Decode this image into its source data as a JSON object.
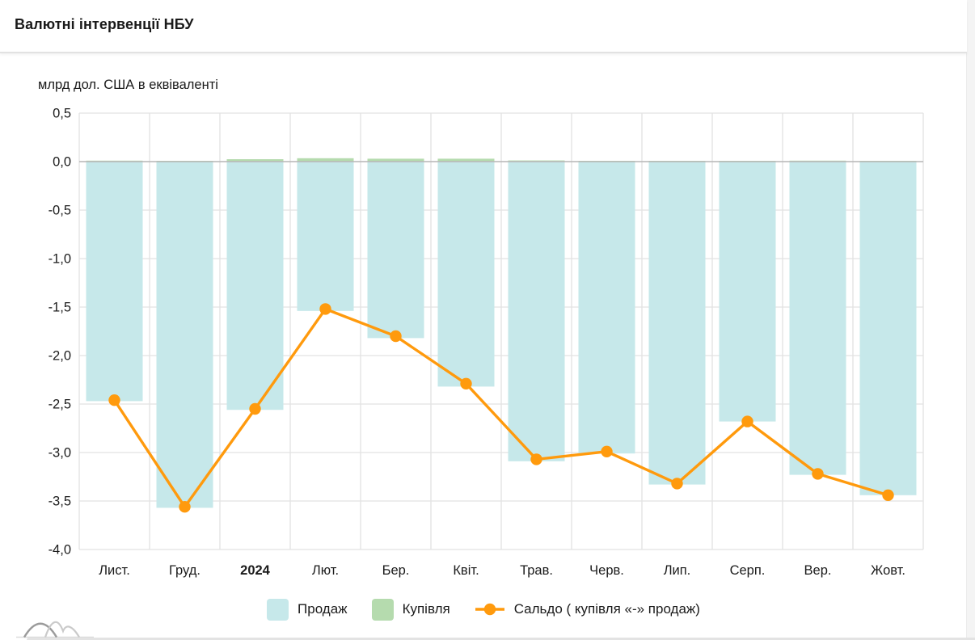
{
  "header": {
    "title": "Валютні інтервенції НБУ"
  },
  "chart": {
    "unit_label": "млрд дол. США в еквіваленті"
  },
  "legend": {
    "sell_label": "Продаж",
    "buy_label": "Купівля",
    "balance_label": "Сальдо ( купівля «-» продаж)"
  },
  "colors": {
    "sell": "#c6e8ea",
    "buy": "#b5dbae",
    "balance": "#ff9a0d",
    "gridline": "#e2e2e2",
    "zero_line": "#b8b8b8",
    "text": "#1b1b1b"
  },
  "chart_data": {
    "type": "bar+line",
    "title": "Валютні інтервенції НБУ",
    "ylabel": "млрд дол. США в еквіваленті",
    "categories": [
      "Лист.",
      "Груд.",
      "2024",
      "Лют.",
      "Бер.",
      "Квіт.",
      "Трав.",
      "Черв.",
      "Лип.",
      "Серп.",
      "Вер.",
      "Жовт."
    ],
    "bold_category": "2024",
    "series": [
      {
        "name": "Продаж",
        "type": "bar",
        "values": [
          -2.47,
          -3.57,
          -2.56,
          -1.54,
          -1.82,
          -2.32,
          -3.09,
          -3.01,
          -3.33,
          -2.68,
          -3.23,
          -3.44
        ]
      },
      {
        "name": "Купівля",
        "type": "bar",
        "values": [
          0.01,
          0.008,
          0.025,
          0.035,
          0.03,
          0.03,
          0.012,
          0.008,
          0.006,
          0.006,
          0.01,
          0.006
        ]
      },
      {
        "name": "Сальдо ( купівля «-» продаж)",
        "type": "line",
        "values": [
          -2.46,
          -3.56,
          -2.55,
          -1.52,
          -1.8,
          -2.29,
          -3.07,
          -2.99,
          -3.32,
          -2.68,
          -3.22,
          -3.44
        ]
      }
    ],
    "ylim": [
      0.5,
      -4.0
    ],
    "ytick_labels": [
      "0,5",
      "0,0",
      "-0,5",
      "-1,0",
      "-1,5",
      "-2,0",
      "-2,5",
      "-3,0",
      "-3,5",
      "-4,0"
    ],
    "ytick_values": [
      0.5,
      0.0,
      -0.5,
      -1.0,
      -1.5,
      -2.0,
      -2.5,
      -3.0,
      -3.5,
      -4.0
    ],
    "grid": "on",
    "legend_position": "bottom"
  }
}
